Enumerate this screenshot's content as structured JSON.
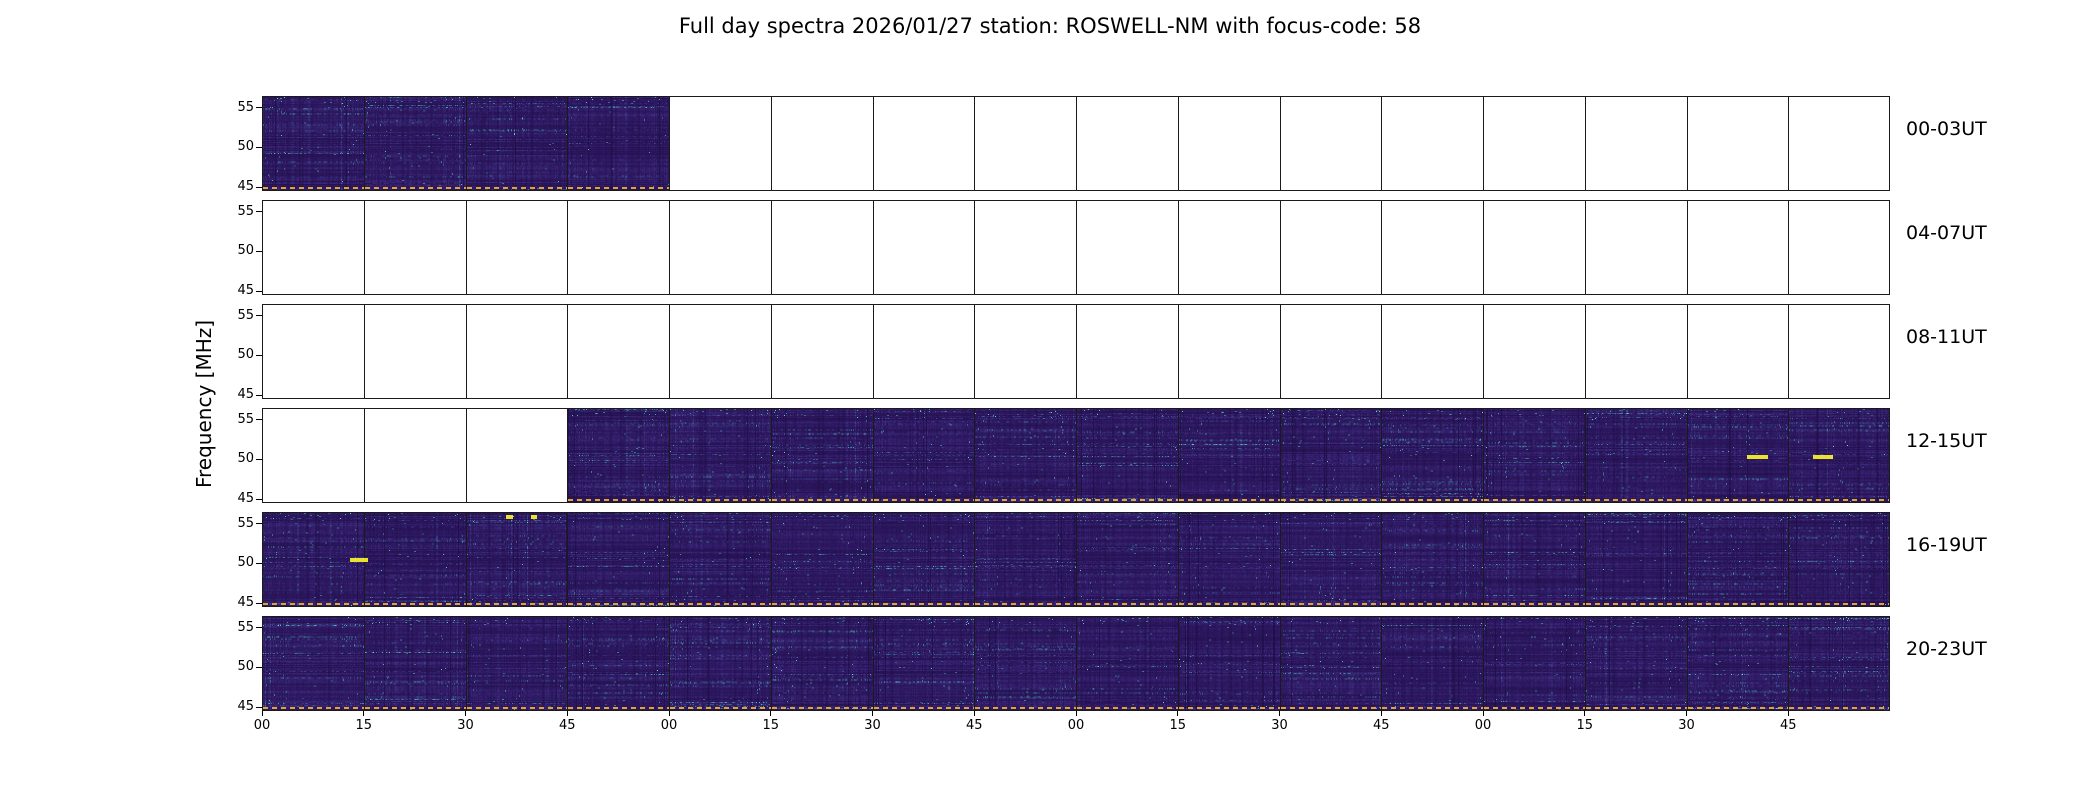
{
  "chart_data": {
    "type": "heatmap",
    "title": "Full day spectra 2026/01/27 station: ROSWELL-NM with focus-code: 58",
    "xlabel": "",
    "ylabel": "Frequency [MHz]",
    "colormap": "viridis-dark",
    "grid": false,
    "legend": null,
    "y_range": [
      44.5,
      56.5
    ],
    "y_ticks": [
      "55",
      "50",
      "45"
    ],
    "y_tick_values": [
      55,
      50,
      45
    ],
    "panels_per_row": 16,
    "minutes_per_panel": 15,
    "x_tick_labels": [
      "00",
      "15",
      "30",
      "45",
      "00",
      "15",
      "30",
      "45",
      "00",
      "15",
      "30",
      "45",
      "00",
      "15",
      "30",
      "45"
    ],
    "rows": [
      {
        "label": "00-03UT",
        "filled": [
          1,
          1,
          1,
          1,
          0,
          0,
          0,
          0,
          0,
          0,
          0,
          0,
          0,
          0,
          0,
          0
        ]
      },
      {
        "label": "04-07UT",
        "filled": [
          0,
          0,
          0,
          0,
          0,
          0,
          0,
          0,
          0,
          0,
          0,
          0,
          0,
          0,
          0,
          0
        ]
      },
      {
        "label": "08-11UT",
        "filled": [
          0,
          0,
          0,
          0,
          0,
          0,
          0,
          0,
          0,
          0,
          0,
          0,
          0,
          0,
          0,
          0
        ]
      },
      {
        "label": "12-15UT",
        "filled": [
          0,
          0,
          0,
          1,
          1,
          1,
          1,
          1,
          1,
          1,
          1,
          1,
          1,
          1,
          1,
          1
        ]
      },
      {
        "label": "16-19UT",
        "filled": [
          1,
          1,
          1,
          1,
          1,
          1,
          1,
          1,
          1,
          1,
          1,
          1,
          1,
          1,
          1,
          1
        ]
      },
      {
        "label": "20-23UT",
        "filled": [
          1,
          1,
          1,
          1,
          1,
          1,
          1,
          1,
          1,
          1,
          1,
          1,
          1,
          1,
          1,
          1
        ]
      }
    ],
    "events": [
      {
        "row": 3,
        "kind": "dash",
        "x_frac": 0.912,
        "w_frac": 0.013,
        "freq": 50.3
      },
      {
        "row": 3,
        "kind": "dash",
        "x_frac": 0.953,
        "w_frac": 0.012,
        "freq": 50.3
      },
      {
        "row": 4,
        "kind": "dash",
        "x_frac": 0.054,
        "w_frac": 0.011,
        "freq": 50.4
      },
      {
        "row": 4,
        "kind": "dot",
        "x_frac": 0.15,
        "w_frac": 0.004,
        "freq": 55.9
      },
      {
        "row": 4,
        "kind": "dot",
        "x_frac": 0.165,
        "w_frac": 0.004,
        "freq": 55.9
      }
    ],
    "colors": {
      "spectrogram_base": "#301a66",
      "speckle_teal": "#2fa69e",
      "bright_speckle": "#78dcd0",
      "event_yellow": "#e8e32e",
      "baseline_dashed": "#dfa52e",
      "panel_border": "#1a1a1a",
      "empty_panel": "#ffffff",
      "text": "#000000"
    }
  }
}
